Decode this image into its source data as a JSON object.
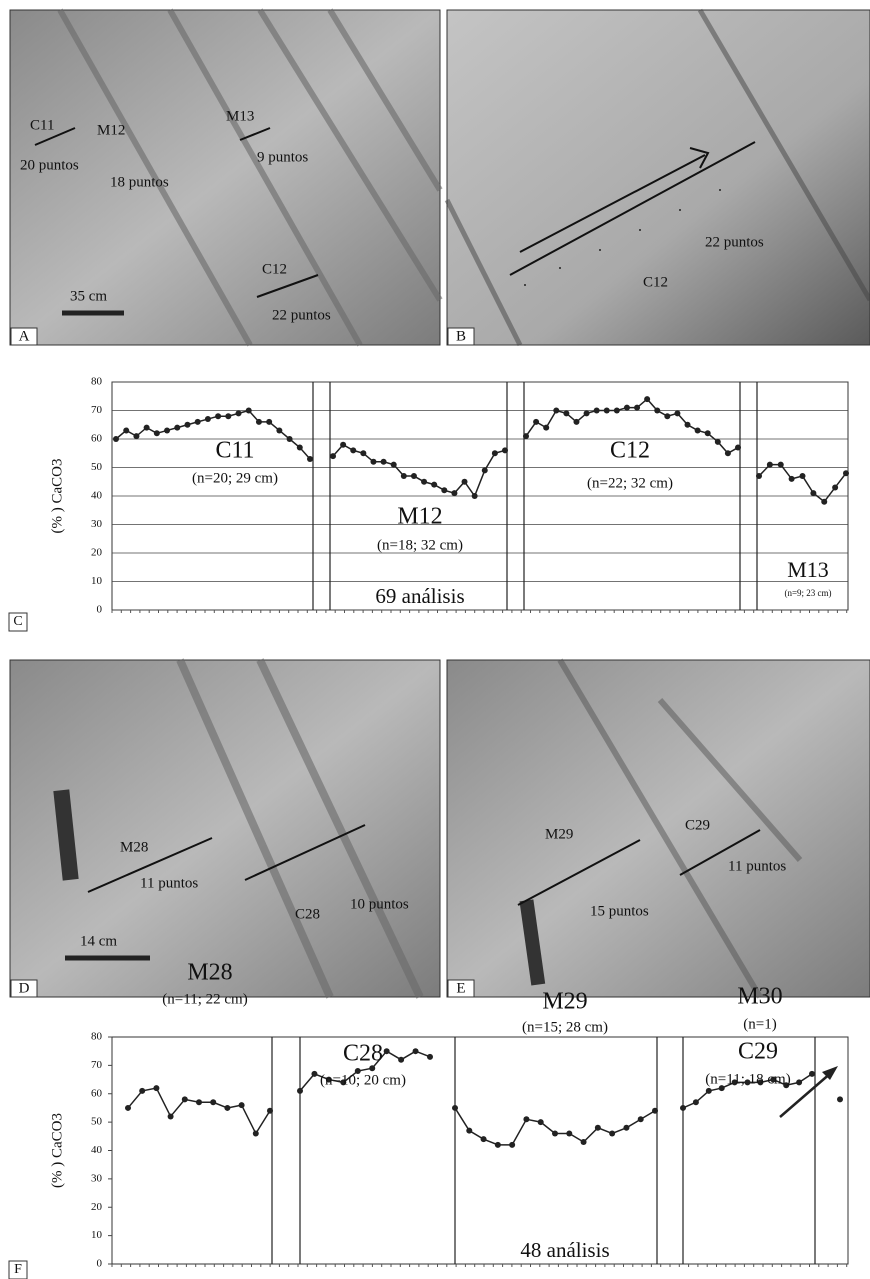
{
  "panels": [
    {
      "letter": "A",
      "texts": [
        "C11",
        "M12",
        "20 puntos",
        "18 puntos",
        "M13",
        "9 puntos",
        "C12",
        "22 puntos",
        "35 cm"
      ]
    },
    {
      "letter": "B",
      "texts": [
        "22 puntos",
        "C12"
      ]
    },
    {
      "letter": "D",
      "texts": [
        "M28",
        "11 puntos",
        "C28",
        "10 puntos",
        "14 cm"
      ]
    },
    {
      "letter": "E",
      "texts": [
        "M29",
        "C29",
        "11 puntos",
        "15 puntos"
      ]
    }
  ],
  "chart_data": [
    {
      "type": "line",
      "letter": "C",
      "ylabel": "(% ) CaCO3",
      "note": "69 análisis",
      "ylim": [
        0,
        80
      ],
      "yticks": [
        0,
        10,
        20,
        30,
        40,
        50,
        60,
        70,
        80
      ],
      "grid": true,
      "color": "#222222",
      "series": [
        {
          "name": "C11",
          "label": "(n=20; 29 cm)",
          "values": [
            60,
            63,
            61,
            64,
            62,
            63,
            64,
            65,
            66,
            67,
            68,
            68,
            69,
            70,
            66,
            66,
            63,
            60,
            57,
            53
          ]
        },
        {
          "name": "M12",
          "label": "(n=18; 32 cm)",
          "values": [
            54,
            58,
            56,
            55,
            52,
            52,
            51,
            47,
            47,
            45,
            44,
            42,
            41,
            45,
            40,
            49,
            55,
            56
          ]
        },
        {
          "name": "C12",
          "label": "(n=22; 32 cm)",
          "values": [
            61,
            66,
            64,
            70,
            69,
            66,
            69,
            70,
            70,
            70,
            71,
            71,
            74,
            70,
            68,
            69,
            65,
            63,
            62,
            59,
            55,
            57
          ]
        },
        {
          "name": "M13",
          "label": "(n=9; 23 cm)",
          "values": [
            47,
            51,
            51,
            46,
            47,
            41,
            38,
            43,
            48
          ]
        }
      ]
    },
    {
      "type": "line",
      "letter": "F",
      "ylabel": "(% ) CaCO3",
      "note": "48 análisis",
      "ylim": [
        0,
        80
      ],
      "yticks": [
        0,
        10,
        20,
        30,
        40,
        50,
        60,
        70,
        80
      ],
      "grid": false,
      "color": "#222222",
      "series": [
        {
          "name": "M28",
          "label": "(n=11; 22 cm)",
          "values": [
            55,
            61,
            62,
            52,
            58,
            57,
            57,
            55,
            56,
            46,
            54
          ]
        },
        {
          "name": "C28",
          "label": "(n=10; 20 cm)",
          "values": [
            61,
            67,
            65,
            64,
            68,
            69,
            75,
            72,
            75,
            73
          ]
        },
        {
          "name": "M29",
          "label": "(n=15; 28 cm)",
          "values": [
            55,
            47,
            44,
            42,
            42,
            51,
            50,
            46,
            46,
            43,
            48,
            46,
            48,
            51,
            54
          ]
        },
        {
          "name": "C29",
          "label": "(n=11; 18 cm)",
          "values": [
            55,
            57,
            61,
            62,
            64,
            64,
            64,
            65,
            63,
            64,
            67
          ]
        },
        {
          "name": "M30",
          "label": "(n=1)",
          "values": [
            58
          ]
        }
      ]
    }
  ]
}
